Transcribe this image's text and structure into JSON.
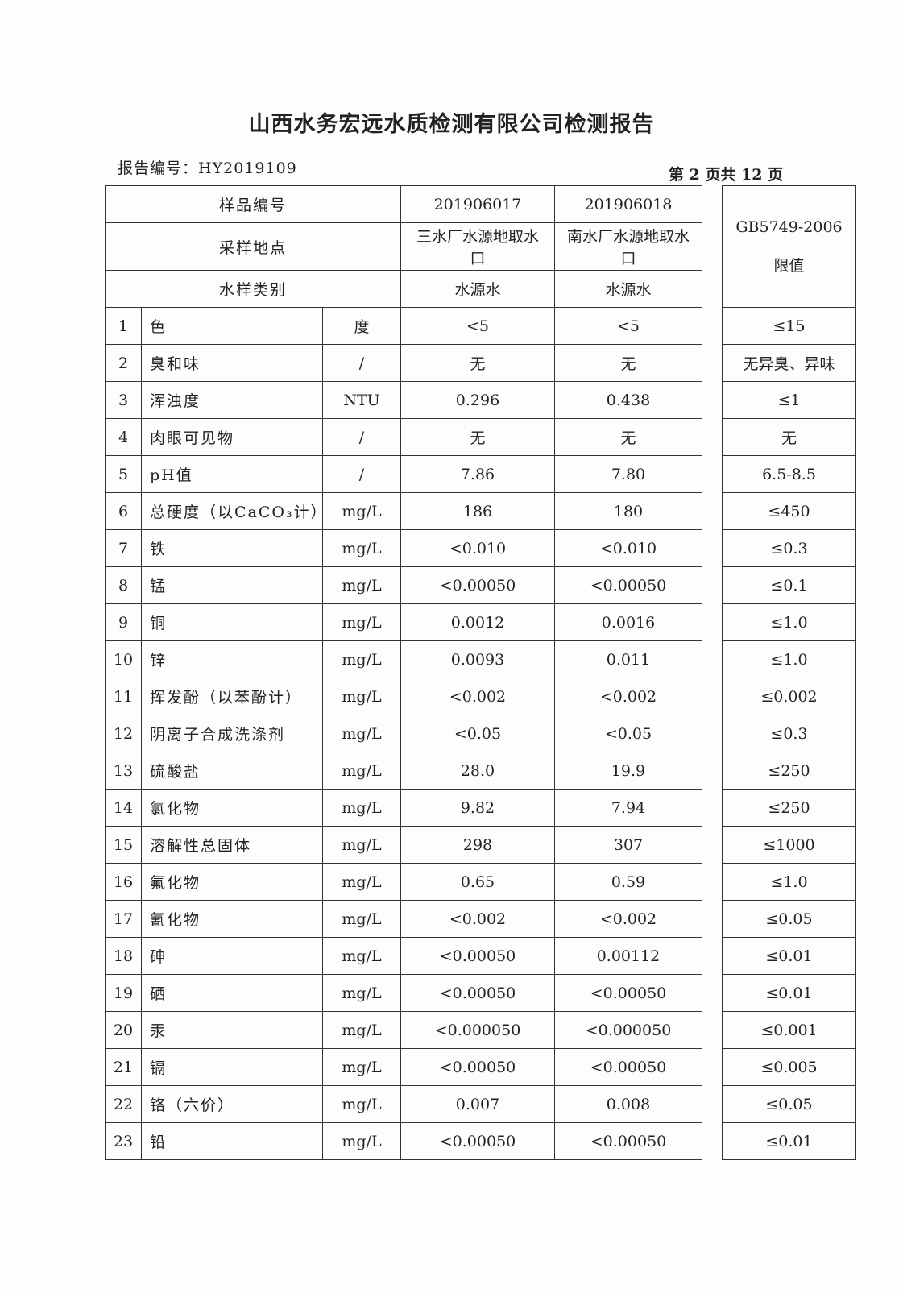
{
  "title": "山西水务宏远水质检测有限公司检测报告",
  "report_number_label": "报告编号：",
  "report_number": "HY2019109",
  "page_info": "第 2 页共 12 页",
  "header": {
    "sample_id_label": "样品编号",
    "sample_ids": [
      "201906017",
      "201906018"
    ],
    "location_label": "采样地点",
    "locations": [
      "三水厂水源地取水口",
      "南水厂水源地取水口"
    ],
    "type_label": "水样类别",
    "types": [
      "水源水",
      "水源水"
    ],
    "limit_header": "GB5749-2006 限值"
  },
  "rows": [
    {
      "no": "1",
      "item": "色",
      "unit": "度",
      "v1": "<5",
      "v2": "<5",
      "limit": "≤15"
    },
    {
      "no": "2",
      "item": "臭和味",
      "unit": "/",
      "v1": "无",
      "v2": "无",
      "limit": "无异臭、异味"
    },
    {
      "no": "3",
      "item": "浑浊度",
      "unit": "NTU",
      "v1": "0.296",
      "v2": "0.438",
      "limit": "≤1"
    },
    {
      "no": "4",
      "item": "肉眼可见物",
      "unit": "/",
      "v1": "无",
      "v2": "无",
      "limit": "无"
    },
    {
      "no": "5",
      "item": "pH值",
      "unit": "/",
      "v1": "7.86",
      "v2": "7.80",
      "limit": "6.5-8.5"
    },
    {
      "no": "6",
      "item": "总硬度（以CaCO₃计）",
      "unit": "mg/L",
      "v1": "186",
      "v2": "180",
      "limit": "≤450"
    },
    {
      "no": "7",
      "item": "铁",
      "unit": "mg/L",
      "v1": "<0.010",
      "v2": "<0.010",
      "limit": "≤0.3"
    },
    {
      "no": "8",
      "item": "锰",
      "unit": "mg/L",
      "v1": "<0.00050",
      "v2": "<0.00050",
      "limit": "≤0.1"
    },
    {
      "no": "9",
      "item": "铜",
      "unit": "mg/L",
      "v1": "0.0012",
      "v2": "0.0016",
      "limit": "≤1.0"
    },
    {
      "no": "10",
      "item": "锌",
      "unit": "mg/L",
      "v1": "0.0093",
      "v2": "0.011",
      "limit": "≤1.0"
    },
    {
      "no": "11",
      "item": "挥发酚（以苯酚计）",
      "unit": "mg/L",
      "v1": "<0.002",
      "v2": "<0.002",
      "limit": "≤0.002"
    },
    {
      "no": "12",
      "item": "阴离子合成洗涤剂",
      "unit": "mg/L",
      "v1": "<0.05",
      "v2": "<0.05",
      "limit": "≤0.3"
    },
    {
      "no": "13",
      "item": "硫酸盐",
      "unit": "mg/L",
      "v1": "28.0",
      "v2": "19.9",
      "limit": "≤250"
    },
    {
      "no": "14",
      "item": "氯化物",
      "unit": "mg/L",
      "v1": "9.82",
      "v2": "7.94",
      "limit": "≤250"
    },
    {
      "no": "15",
      "item": "溶解性总固体",
      "unit": "mg/L",
      "v1": "298",
      "v2": "307",
      "limit": "≤1000"
    },
    {
      "no": "16",
      "item": "氟化物",
      "unit": "mg/L",
      "v1": "0.65",
      "v2": "0.59",
      "limit": "≤1.0"
    },
    {
      "no": "17",
      "item": "氰化物",
      "unit": "mg/L",
      "v1": "<0.002",
      "v2": "<0.002",
      "limit": "≤0.05"
    },
    {
      "no": "18",
      "item": "砷",
      "unit": "mg/L",
      "v1": "<0.00050",
      "v2": "0.00112",
      "limit": "≤0.01"
    },
    {
      "no": "19",
      "item": "硒",
      "unit": "mg/L",
      "v1": "<0.00050",
      "v2": "<0.00050",
      "limit": "≤0.01"
    },
    {
      "no": "20",
      "item": "汞",
      "unit": "mg/L",
      "v1": "<0.000050",
      "v2": "<0.000050",
      "limit": "≤0.001"
    },
    {
      "no": "21",
      "item": "镉",
      "unit": "mg/L",
      "v1": "<0.00050",
      "v2": "<0.00050",
      "limit": "≤0.005"
    },
    {
      "no": "22",
      "item": "铬（六价）",
      "unit": "mg/L",
      "v1": "0.007",
      "v2": "0.008",
      "limit": "≤0.05"
    },
    {
      "no": "23",
      "item": "铅",
      "unit": "mg/L",
      "v1": "<0.00050",
      "v2": "<0.00050",
      "limit": "≤0.01"
    }
  ]
}
